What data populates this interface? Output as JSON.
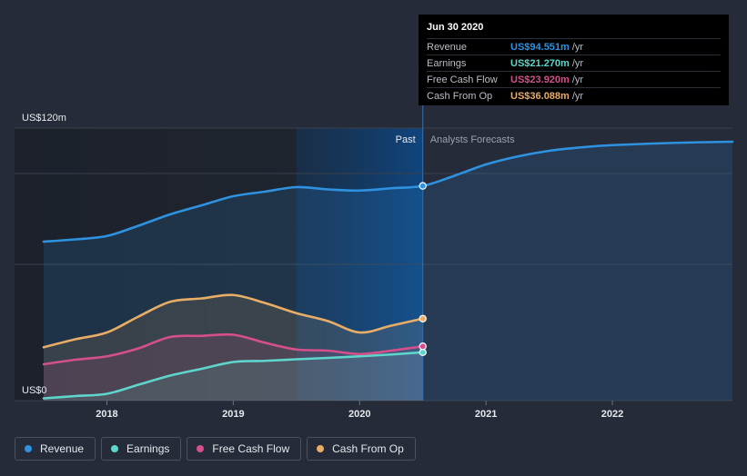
{
  "chart_data": {
    "type": "area",
    "y_axis": {
      "top_label": "US$120m",
      "bottom_label": "US$0",
      "ylim": [
        0,
        120
      ]
    },
    "x_ticks": [
      "2018",
      "2019",
      "2020",
      "2021",
      "2022"
    ],
    "xlim": [
      2017.5,
      2022.95
    ],
    "divider_x": 2020.5,
    "region_labels": {
      "past": "Past",
      "forecast": "Analysts Forecasts"
    },
    "series": [
      {
        "name": "Revenue",
        "color": "#2e92e0",
        "points": [
          [
            2017.5,
            70
          ],
          [
            2017.75,
            71
          ],
          [
            2018,
            72.5
          ],
          [
            2018.25,
            77
          ],
          [
            2018.5,
            82
          ],
          [
            2018.75,
            86
          ],
          [
            2019,
            90
          ],
          [
            2019.25,
            92
          ],
          [
            2019.5,
            94
          ],
          [
            2019.75,
            93
          ],
          [
            2020,
            92.5
          ],
          [
            2020.25,
            93.5
          ],
          [
            2020.5,
            94.551
          ],
          [
            2020.75,
            99
          ],
          [
            2021,
            104
          ],
          [
            2021.25,
            107.5
          ],
          [
            2021.5,
            110
          ],
          [
            2021.75,
            111.5
          ],
          [
            2022,
            112.5
          ],
          [
            2022.5,
            113.5
          ],
          [
            2022.95,
            114
          ]
        ]
      },
      {
        "name": "Earnings",
        "color": "#5ed6cb",
        "points": [
          [
            2017.5,
            1
          ],
          [
            2017.75,
            2
          ],
          [
            2018,
            3
          ],
          [
            2018.25,
            7
          ],
          [
            2018.5,
            11
          ],
          [
            2018.75,
            14
          ],
          [
            2019,
            17
          ],
          [
            2019.25,
            17.5
          ],
          [
            2019.5,
            18.2
          ],
          [
            2019.75,
            18.8
          ],
          [
            2020,
            19.5
          ],
          [
            2020.25,
            20.3
          ],
          [
            2020.5,
            21.27
          ]
        ]
      },
      {
        "name": "Free Cash Flow",
        "color": "#d5508b",
        "points": [
          [
            2017.5,
            16
          ],
          [
            2017.75,
            18
          ],
          [
            2018,
            19.5
          ],
          [
            2018.25,
            23
          ],
          [
            2018.5,
            28
          ],
          [
            2018.75,
            28.5
          ],
          [
            2019,
            29
          ],
          [
            2019.25,
            25.5
          ],
          [
            2019.5,
            22.5
          ],
          [
            2019.75,
            22
          ],
          [
            2020,
            20.5
          ],
          [
            2020.25,
            22
          ],
          [
            2020.5,
            23.92
          ]
        ]
      },
      {
        "name": "Cash From Op",
        "color": "#e8ad66",
        "points": [
          [
            2017.5,
            23.5
          ],
          [
            2017.75,
            27
          ],
          [
            2018,
            30
          ],
          [
            2018.25,
            37
          ],
          [
            2018.5,
            43.5
          ],
          [
            2018.75,
            45
          ],
          [
            2019,
            46.5
          ],
          [
            2019.25,
            43
          ],
          [
            2019.5,
            38.5
          ],
          [
            2019.75,
            35
          ],
          [
            2020,
            30
          ],
          [
            2020.25,
            33
          ],
          [
            2020.5,
            36.088
          ]
        ]
      }
    ]
  },
  "tooltip": {
    "date": "Jun 30 2020",
    "rows": [
      {
        "label": "Revenue",
        "value": "US$94.551m",
        "unit": "/yr",
        "color": "#2e92e0"
      },
      {
        "label": "Earnings",
        "value": "US$21.270m",
        "unit": "/yr",
        "color": "#5ed6cb"
      },
      {
        "label": "Free Cash Flow",
        "value": "US$23.920m",
        "unit": "/yr",
        "color": "#d5508b"
      },
      {
        "label": "Cash From Op",
        "value": "US$36.088m",
        "unit": "/yr",
        "color": "#e8ad66"
      }
    ]
  },
  "legend": [
    {
      "label": "Revenue",
      "color": "#2e92e0"
    },
    {
      "label": "Earnings",
      "color": "#5ed6cb"
    },
    {
      "label": "Free Cash Flow",
      "color": "#d5508b"
    },
    {
      "label": "Cash From Op",
      "color": "#e8ad66"
    }
  ]
}
